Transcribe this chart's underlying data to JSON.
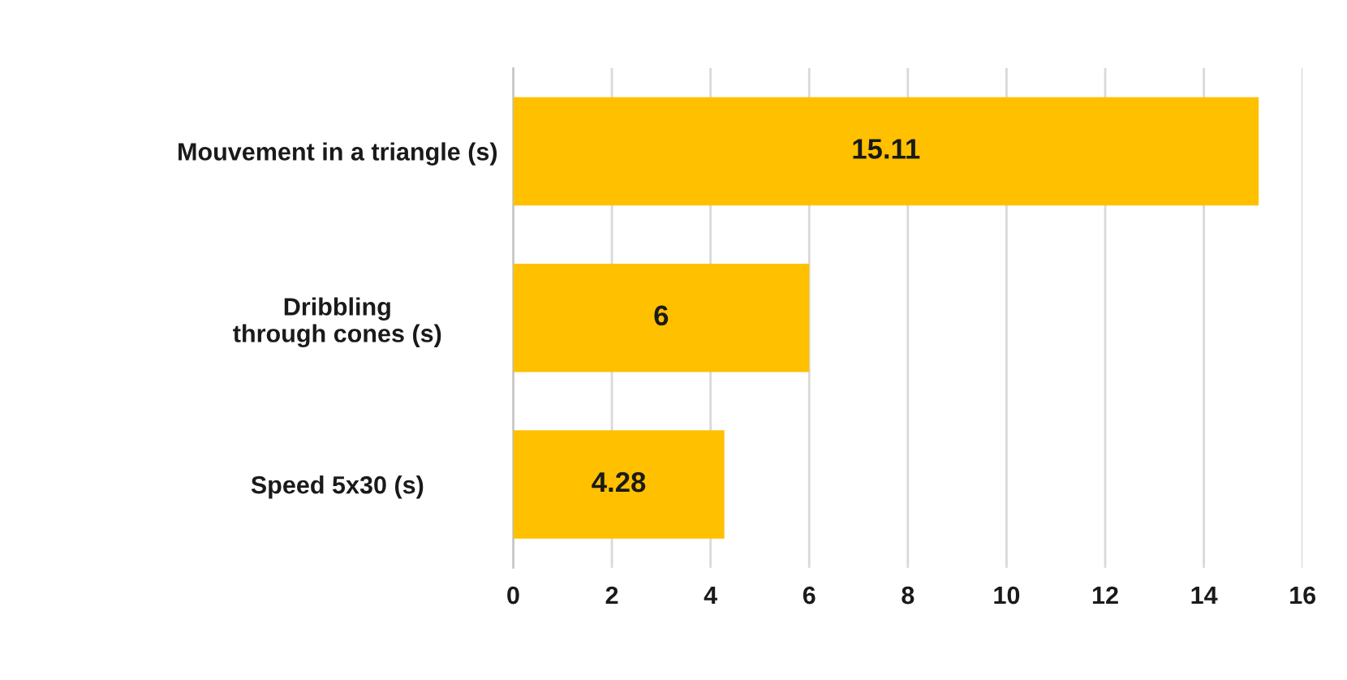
{
  "chart_data": {
    "type": "bar",
    "orientation": "horizontal",
    "categories": [
      "Mouvement in a triangle (s)",
      "Dribbling\nthrough cones (s)",
      "Speed 5x30 (s)"
    ],
    "values": [
      15.11,
      6,
      4.28
    ],
    "color": "#ffc000",
    "xlim": [
      0,
      16
    ],
    "xticks": [
      0,
      2,
      4,
      6,
      8,
      10,
      12,
      14,
      16
    ],
    "grid": "x",
    "data_labels": true,
    "legend": false
  }
}
